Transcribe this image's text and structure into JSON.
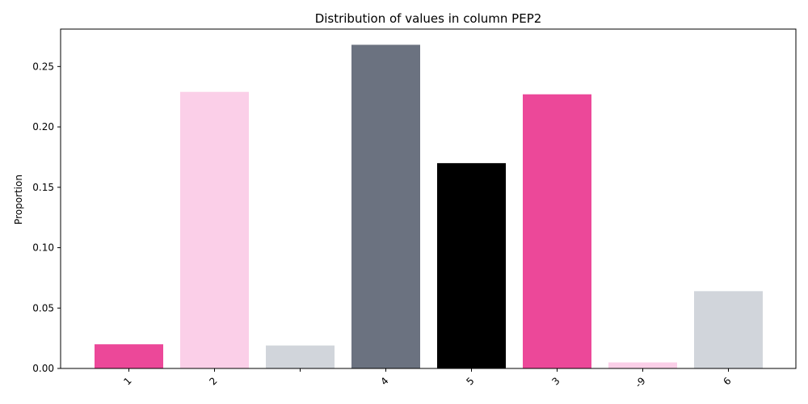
{
  "chart_data": {
    "type": "bar",
    "title": "Distribution of values in column PEP2",
    "xlabel": "",
    "ylabel": "Proportion",
    "categories": [
      "1",
      "2",
      "",
      "4",
      "5",
      "3",
      "-9",
      "6"
    ],
    "values": [
      0.02,
      0.229,
      0.019,
      0.268,
      0.17,
      0.227,
      0.005,
      0.064
    ],
    "colors": [
      "#ec4899",
      "#fbcfe8",
      "#d1d5db",
      "#6b7280",
      "#000000",
      "#ec4899",
      "#fbcfe8",
      "#d1d5db"
    ],
    "ylim": [
      0,
      0.281
    ],
    "yticks": [
      0.0,
      0.05,
      0.1,
      0.15,
      0.2,
      0.25
    ],
    "ytick_labels": [
      "0.00",
      "0.05",
      "0.10",
      "0.15",
      "0.20",
      "0.25"
    ],
    "grid": false,
    "legend": "none"
  }
}
